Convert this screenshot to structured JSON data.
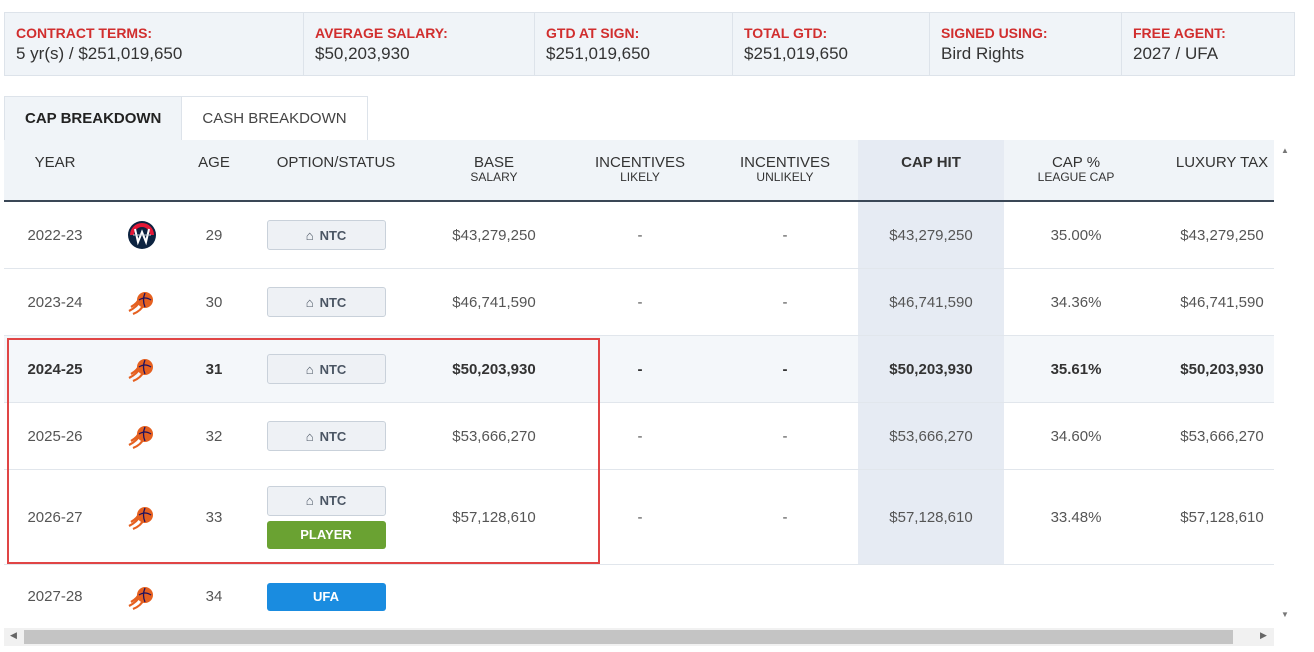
{
  "summary": [
    {
      "label": "CONTRACT TERMS:",
      "value": "5 yr(s) / $251,019,650"
    },
    {
      "label": "AVERAGE SALARY:",
      "value": "$50,203,930"
    },
    {
      "label": "GTD AT SIGN:",
      "value": "$251,019,650"
    },
    {
      "label": "TOTAL GTD:",
      "value": "$251,019,650"
    },
    {
      "label": "SIGNED USING:",
      "value": "Bird Rights"
    },
    {
      "label": "FREE AGENT:",
      "value": "2027 / UFA"
    }
  ],
  "tabs": [
    {
      "label": "CAP BREAKDOWN",
      "active": true
    },
    {
      "label": "CASH BREAKDOWN",
      "active": false
    }
  ],
  "columns": [
    {
      "main": "YEAR",
      "sub": ""
    },
    {
      "main": "",
      "sub": ""
    },
    {
      "main": "AGE",
      "sub": ""
    },
    {
      "main": "OPTION/STATUS",
      "sub": ""
    },
    {
      "main": "BASE",
      "sub": "SALARY"
    },
    {
      "main": "INCENTIVES",
      "sub": "LIKELY"
    },
    {
      "main": "INCENTIVES",
      "sub": "UNLIKELY"
    },
    {
      "main": "CAP HIT",
      "sub": ""
    },
    {
      "main": "CAP %",
      "sub": "LEAGUE CAP"
    },
    {
      "main": "LUXURY TAX",
      "sub": ""
    }
  ],
  "rows": [
    {
      "year": "2022-23",
      "team": "wizards-logo",
      "age": "29",
      "status": [
        "NTC"
      ],
      "base": "$43,279,250",
      "inc_likely": "-",
      "inc_unlikely": "-",
      "cap_hit": "$43,279,250",
      "cap_pct": "35.00%",
      "lux": "$43,279,250"
    },
    {
      "year": "2023-24",
      "team": "suns-logo",
      "age": "30",
      "status": [
        "NTC"
      ],
      "base": "$46,741,590",
      "inc_likely": "-",
      "inc_unlikely": "-",
      "cap_hit": "$46,741,590",
      "cap_pct": "34.36%",
      "lux": "$46,741,590"
    },
    {
      "year": "2024-25",
      "team": "suns-logo",
      "age": "31",
      "status": [
        "NTC"
      ],
      "base": "$50,203,930",
      "inc_likely": "-",
      "inc_unlikely": "-",
      "cap_hit": "$50,203,930",
      "cap_pct": "35.61%",
      "lux": "$50,203,930"
    },
    {
      "year": "2025-26",
      "team": "suns-logo",
      "age": "32",
      "status": [
        "NTC"
      ],
      "base": "$53,666,270",
      "inc_likely": "-",
      "inc_unlikely": "-",
      "cap_hit": "$53,666,270",
      "cap_pct": "34.60%",
      "lux": "$53,666,270"
    },
    {
      "year": "2026-27",
      "team": "suns-logo",
      "age": "33",
      "status": [
        "NTC",
        "PLAYER"
      ],
      "base": "$57,128,610",
      "inc_likely": "-",
      "inc_unlikely": "-",
      "cap_hit": "$57,128,610",
      "cap_pct": "33.48%",
      "lux": "$57,128,610"
    },
    {
      "year": "2027-28",
      "team": "suns-logo",
      "age": "34",
      "status": [
        "UFA"
      ],
      "base": "",
      "inc_likely": "",
      "inc_unlikely": "",
      "cap_hit": "",
      "cap_pct": "",
      "lux": ""
    }
  ],
  "highlighted_row": "2024-25",
  "colors": {
    "label_red": "#d12e2e",
    "player_green": "#6aa232",
    "ufa_blue": "#1a8ce0",
    "annotation_red": "#e04545"
  }
}
